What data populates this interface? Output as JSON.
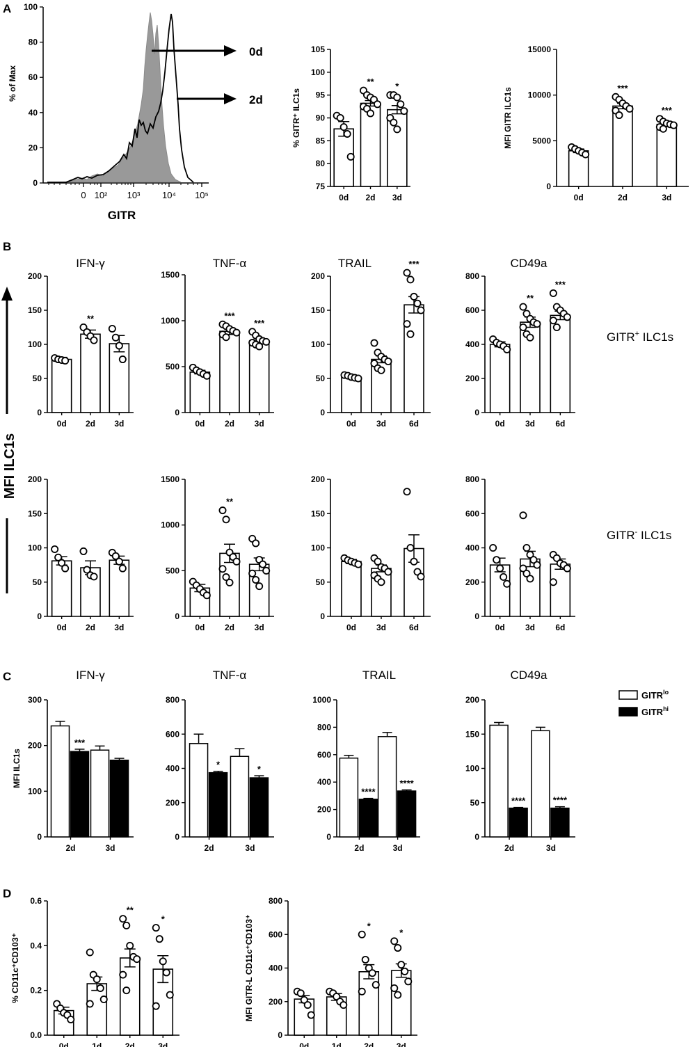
{
  "panels": {
    "A": "A",
    "B": "B",
    "C": "C",
    "D": "D"
  },
  "chart_data": [
    {
      "id": "A_hist",
      "type": "area",
      "ylabel": "% of Max",
      "xlabel": "GITR",
      "xticks": [
        "0",
        "10²",
        "10³",
        "10⁴",
        "10⁵"
      ],
      "yticks": [
        0,
        20,
        40,
        60,
        80,
        100
      ],
      "ylim": [
        0,
        100
      ],
      "series": [
        {
          "name": "0d",
          "style": "filled-gray"
        },
        {
          "name": "2d",
          "style": "black-line"
        }
      ],
      "arrows": [
        "0d",
        "2d"
      ],
      "log_x": true
    },
    {
      "id": "A2",
      "type": "bar",
      "ylabel": "% GITR⁺ ILC1s",
      "ylim": [
        75,
        105
      ],
      "yticks": [
        75,
        80,
        85,
        90,
        95,
        100,
        105
      ],
      "categories": [
        "0d",
        "2d",
        "3d"
      ],
      "values": [
        87.6,
        93.2,
        91.8
      ],
      "sem": [
        1.6,
        0.6,
        0.9
      ],
      "points": [
        [
          90.5,
          90,
          88,
          86.5,
          81.5
        ],
        [
          96,
          95,
          94.5,
          94,
          93,
          92.5,
          92,
          91
        ],
        [
          95,
          95,
          94.5,
          93,
          91.5,
          90,
          89,
          87.5
        ]
      ],
      "annotations": [
        "",
        "**",
        "*"
      ]
    },
    {
      "id": "A3",
      "type": "bar",
      "ylabel": "MFI GITR ILC1s",
      "ylim": [
        0,
        15000
      ],
      "yticks": [
        0,
        5000,
        10000,
        15000
      ],
      "categories": [
        "0d",
        "2d",
        "3d"
      ],
      "values": [
        3900,
        8800,
        6800
      ],
      "sem": [
        200,
        300,
        250
      ],
      "points": [
        [
          4300,
          4100,
          3900,
          3700,
          3500
        ],
        [
          9800,
          9500,
          9100,
          8800,
          8500,
          8300,
          7800
        ],
        [
          7400,
          7100,
          6900,
          6800,
          6700,
          6500,
          6300
        ]
      ],
      "annotations": [
        "",
        "***",
        "***"
      ]
    },
    {
      "id": "B1",
      "type": "bar",
      "title": "IFN-γ",
      "ylim": [
        0,
        200
      ],
      "yticks": [
        0,
        50,
        100,
        150,
        200
      ],
      "categories": [
        "0d",
        "2d",
        "3d"
      ],
      "values": [
        78,
        115,
        101
      ],
      "sem": [
        3,
        6,
        12
      ],
      "points": [
        [
          80,
          78,
          77,
          76
        ],
        [
          125,
          118,
          112,
          106
        ],
        [
          123,
          110,
          98,
          78
        ]
      ],
      "annotations": [
        "",
        "**",
        ""
      ]
    },
    {
      "id": "B2",
      "type": "bar",
      "title": "TNF-α",
      "ylim": [
        0,
        1500
      ],
      "yticks": [
        0,
        500,
        1000,
        1500
      ],
      "categories": [
        "0d",
        "2d",
        "3d"
      ],
      "values": [
        440,
        885,
        780
      ],
      "sem": [
        20,
        35,
        25
      ],
      "points": [
        [
          490,
          460,
          440,
          420,
          400
        ],
        [
          960,
          940,
          910,
          890,
          870,
          850,
          820
        ],
        [
          880,
          840,
          800,
          780,
          770,
          760,
          740,
          720
        ]
      ],
      "annotations": [
        "",
        "***",
        "***"
      ]
    },
    {
      "id": "B3",
      "type": "bar",
      "title": "TRAIL",
      "ylim": [
        0,
        200
      ],
      "yticks": [
        0,
        50,
        100,
        150,
        200
      ],
      "categories": [
        "0d",
        "3d",
        "6d"
      ],
      "values": [
        52,
        78,
        158
      ],
      "sem": [
        2,
        5,
        12
      ],
      "points": [
        [
          55,
          54,
          52,
          51,
          50
        ],
        [
          102,
          88,
          82,
          78,
          75,
          72,
          65,
          62
        ],
        [
          205,
          195,
          170,
          160,
          150,
          130,
          115
        ]
      ],
      "annotations": [
        "",
        "",
        "***"
      ]
    },
    {
      "id": "B4",
      "type": "bar",
      "title": "CD49a",
      "ylim": [
        0,
        800
      ],
      "yticks": [
        0,
        200,
        400,
        600,
        800
      ],
      "categories": [
        "0d",
        "3d",
        "6d"
      ],
      "values": [
        400,
        530,
        570
      ],
      "sem": [
        15,
        30,
        25
      ],
      "points": [
        [
          430,
          410,
          400,
          390,
          370
        ],
        [
          620,
          580,
          550,
          530,
          520,
          500,
          460,
          440
        ],
        [
          700,
          620,
          600,
          580,
          560,
          540,
          500
        ]
      ],
      "annotations": [
        "",
        "**",
        "***"
      ]
    },
    {
      "id": "B5",
      "type": "bar",
      "ylim": [
        0,
        200
      ],
      "yticks": [
        0,
        50,
        100,
        150,
        200
      ],
      "categories": [
        "0d",
        "2d",
        "3d"
      ],
      "values": [
        81,
        71,
        82
      ],
      "sem": [
        6,
        10,
        6
      ],
      "points": [
        [
          98,
          86,
          78,
          70
        ],
        [
          95,
          68,
          60,
          58
        ],
        [
          93,
          88,
          80,
          70
        ]
      ],
      "annotations": [
        "",
        "",
        ""
      ]
    },
    {
      "id": "B6",
      "type": "bar",
      "ylim": [
        0,
        1500
      ],
      "yticks": [
        0,
        500,
        1000,
        1500
      ],
      "categories": [
        "0d",
        "2d",
        "3d"
      ],
      "values": [
        310,
        690,
        570
      ],
      "sem": [
        40,
        100,
        70
      ],
      "points": [
        [
          380,
          340,
          300,
          260,
          230
        ],
        [
          1160,
          1060,
          700,
          650,
          600,
          520,
          430,
          370
        ],
        [
          850,
          800,
          620,
          570,
          500,
          470,
          400,
          330
        ]
      ],
      "annotations": [
        "",
        "**",
        ""
      ]
    },
    {
      "id": "B7",
      "type": "bar",
      "ylim": [
        0,
        200
      ],
      "yticks": [
        0,
        50,
        100,
        150,
        200
      ],
      "categories": [
        "0d",
        "3d",
        "6d"
      ],
      "values": [
        80,
        70,
        99
      ],
      "sem": [
        3,
        5,
        20
      ],
      "points": [
        [
          85,
          82,
          80,
          78,
          76
        ],
        [
          85,
          80,
          72,
          70,
          65,
          60,
          55,
          50
        ],
        [
          182,
          100,
          80,
          65,
          58
        ]
      ],
      "annotations": [
        "",
        "",
        ""
      ]
    },
    {
      "id": "B8",
      "type": "bar",
      "ylim": [
        0,
        800
      ],
      "yticks": [
        0,
        200,
        400,
        600,
        800
      ],
      "categories": [
        "0d",
        "3d",
        "6d"
      ],
      "values": [
        300,
        335,
        305
      ],
      "sem": [
        40,
        45,
        30
      ],
      "points": [
        [
          400,
          330,
          280,
          230,
          190
        ],
        [
          590,
          400,
          360,
          330,
          300,
          280,
          250,
          220
        ],
        [
          360,
          340,
          310,
          300,
          280,
          200
        ]
      ],
      "annotations": [
        "",
        "",
        ""
      ]
    },
    {
      "id": "C1",
      "type": "bar",
      "title": "IFN-γ",
      "ylabel": "MFI ILC1s",
      "ylim": [
        0,
        300
      ],
      "yticks": [
        0,
        100,
        200,
        300
      ],
      "categories": [
        "2d",
        "3d"
      ],
      "series": [
        {
          "name": "GITRlo",
          "values": [
            243,
            190
          ],
          "sem": [
            10,
            9
          ]
        },
        {
          "name": "GITRhi",
          "values": [
            187,
            168
          ],
          "sem": [
            5,
            4
          ]
        }
      ],
      "annotations": [
        "***",
        ""
      ]
    },
    {
      "id": "C2",
      "type": "bar",
      "title": "TNF-α",
      "ylim": [
        0,
        800
      ],
      "yticks": [
        0,
        200,
        400,
        600,
        800
      ],
      "categories": [
        "2d",
        "3d"
      ],
      "series": [
        {
          "name": "GITRlo",
          "values": [
            545,
            470
          ],
          "sem": [
            55,
            45
          ]
        },
        {
          "name": "GITRhi",
          "values": [
            375,
            345
          ],
          "sem": [
            8,
            12
          ]
        }
      ],
      "annotations": [
        "*",
        "*"
      ]
    },
    {
      "id": "C3",
      "type": "bar",
      "title": "TRAIL",
      "ylim": [
        0,
        1000
      ],
      "yticks": [
        0,
        200,
        400,
        600,
        800,
        1000
      ],
      "categories": [
        "2d",
        "3d"
      ],
      "series": [
        {
          "name": "GITRlo",
          "values": [
            575,
            732
          ],
          "sem": [
            20,
            30
          ]
        },
        {
          "name": "GITRhi",
          "values": [
            275,
            335
          ],
          "sem": [
            6,
            8
          ]
        }
      ],
      "annotations": [
        "****",
        "****"
      ]
    },
    {
      "id": "C4",
      "type": "bar",
      "title": "CD49a",
      "ylim": [
        0,
        200
      ],
      "yticks": [
        0,
        50,
        100,
        150,
        200
      ],
      "categories": [
        "2d",
        "3d"
      ],
      "series": [
        {
          "name": "GITRlo",
          "values": [
            163,
            155
          ],
          "sem": [
            4,
            5
          ]
        },
        {
          "name": "GITRhi",
          "values": [
            42,
            42
          ],
          "sem": [
            1,
            2
          ]
        }
      ],
      "annotations": [
        "****",
        "****"
      ]
    },
    {
      "id": "D1",
      "type": "bar",
      "ylabel": "% CD11c⁺CD103⁺",
      "ylim": [
        0,
        0.6
      ],
      "yticks": [
        0.0,
        0.2,
        0.4,
        0.6
      ],
      "categories": [
        "0d",
        "1d",
        "2d",
        "3d"
      ],
      "values": [
        0.11,
        0.23,
        0.345,
        0.295
      ],
      "sem": [
        0.015,
        0.03,
        0.04,
        0.06
      ],
      "points": [
        [
          0.14,
          0.12,
          0.1,
          0.09,
          0.07
        ],
        [
          0.37,
          0.27,
          0.25,
          0.21,
          0.16,
          0.14
        ],
        [
          0.52,
          0.49,
          0.4,
          0.35,
          0.34,
          0.27,
          0.2
        ],
        [
          0.48,
          0.43,
          0.33,
          0.28,
          0.18,
          0.13
        ]
      ],
      "annotations": [
        "",
        "",
        "**",
        "*"
      ]
    },
    {
      "id": "D2",
      "type": "bar",
      "ylabel": "MFI GITR-L CD11c⁺CD103⁺",
      "ylim": [
        0,
        800
      ],
      "yticks": [
        0,
        200,
        400,
        600,
        800
      ],
      "categories": [
        "0d",
        "1d",
        "2d",
        "3d"
      ],
      "values": [
        215,
        228,
        378,
        385
      ],
      "sem": [
        22,
        20,
        42,
        40
      ],
      "points": [
        [
          260,
          250,
          210,
          180,
          120
        ],
        [
          260,
          250,
          230,
          200,
          180
        ],
        [
          600,
          450,
          400,
          370,
          300,
          260
        ],
        [
          560,
          520,
          420,
          380,
          320,
          280,
          240
        ]
      ],
      "annotations": [
        "",
        "",
        "*",
        "*"
      ]
    }
  ],
  "side_labels": {
    "mfi_ilc1s": "MFI ILC1s",
    "gitr_pos_pre": "GITR",
    "gitr_pos_sup": "+",
    "gitr_pos_post": " ILC1s",
    "gitr_neg_pre": "GITR",
    "gitr_neg_sup": "-",
    "gitr_neg_post": " ILC1s"
  },
  "legend": {
    "lo_pre": "GITR",
    "lo_sup": "lo",
    "hi_pre": "GITR",
    "hi_sup": "hi"
  }
}
